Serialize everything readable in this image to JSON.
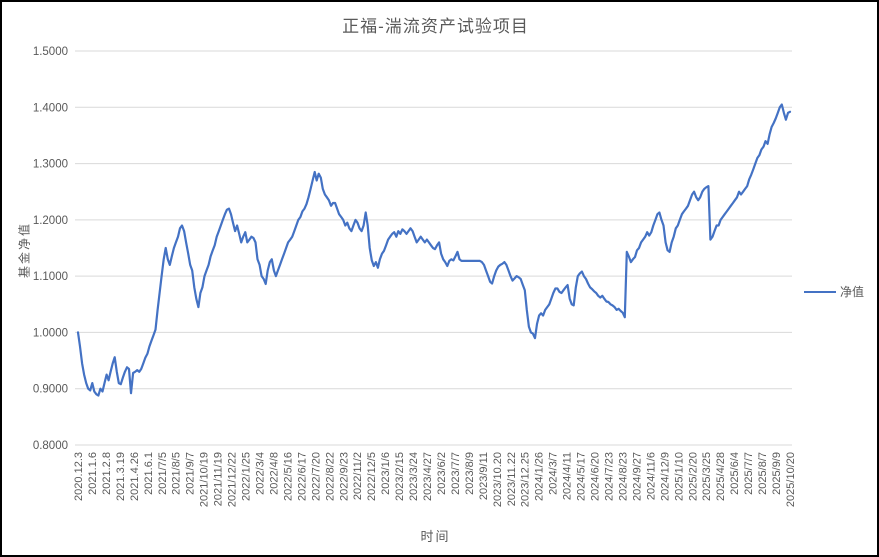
{
  "header": {
    "title": "正福-湍流资产试验项目"
  },
  "axes": {
    "y_title": "基金净值",
    "x_title": "时间"
  },
  "legend": {
    "label": "净值"
  },
  "colors": {
    "line": "#4472C4",
    "grid": "#D9D9D9",
    "axis": "#D9D9D9",
    "text": "#595959",
    "frame": "#000000"
  },
  "chart_data": {
    "type": "line",
    "title": "正福-湍流资产试验项目",
    "xlabel": "时间",
    "ylabel": "基金净值",
    "legend_position": "right",
    "grid": true,
    "ylim": [
      0.8,
      1.5
    ],
    "y_ticks": [
      {
        "value": 1.5,
        "label": "1.5000"
      },
      {
        "value": 1.4,
        "label": "1.4000"
      },
      {
        "value": 1.3,
        "label": "1.3000"
      },
      {
        "value": 1.2,
        "label": "1.2000"
      },
      {
        "value": 1.1,
        "label": "1.1000"
      },
      {
        "value": 1.0,
        "label": "1.0000"
      },
      {
        "value": 0.9,
        "label": "0.9000"
      },
      {
        "value": 0.8,
        "label": "0.8000"
      }
    ],
    "categories": [
      "2020.12.3",
      "2021.1.6",
      "2021.2.8",
      "2021.3.19",
      "2021.4.26",
      "2021.6.1",
      "2021/7/5",
      "2021/8/5",
      "2021/9/7",
      "2021/10/19",
      "2021/11/19",
      "2021/12/22",
      "2022/1/25",
      "2022/3/4",
      "2022/4/8",
      "2022/5/16",
      "2022/6/17",
      "2022/7/20",
      "2022/8/22",
      "2022/9/23",
      "2022/11/2",
      "2022/12/5",
      "2023/1/6",
      "2023/2/15",
      "2023/3/24",
      "2023/4/27",
      "2023/6/2",
      "2023/7/7",
      "2023/8/9",
      "2023/9/11",
      "2023/10.20",
      "2023/11.22",
      "2023/12.25",
      "2024/1/26",
      "2024/3/7",
      "2024/4/11",
      "2024/5/17",
      "2024/6/20",
      "2024/7/23",
      "2024/8/23",
      "2024/9/27",
      "2024/11/6",
      "2024/12/9",
      "2025/1/10",
      "2025/2/20",
      "2025/3/25",
      "2025/4/28",
      "2025/6/4",
      "2025/7/7",
      "2025/8/7",
      "2025/9/9",
      "2025/10/20"
    ],
    "series": [
      {
        "name": "净值",
        "color": "#4472C4",
        "values": [
          1.0,
          0.975,
          0.945,
          0.925,
          0.91,
          0.9,
          0.897,
          0.91,
          0.895,
          0.89,
          0.888,
          0.9,
          0.895,
          0.91,
          0.925,
          0.915,
          0.93,
          0.945,
          0.956,
          0.93,
          0.91,
          0.908,
          0.92,
          0.93,
          0.938,
          0.935,
          0.892,
          0.928,
          0.93,
          0.933,
          0.93,
          0.935,
          0.945,
          0.955,
          0.962,
          0.975,
          0.985,
          0.995,
          1.005,
          1.04,
          1.07,
          1.1,
          1.13,
          1.15,
          1.13,
          1.12,
          1.135,
          1.15,
          1.16,
          1.17,
          1.185,
          1.19,
          1.18,
          1.16,
          1.14,
          1.12,
          1.11,
          1.08,
          1.06,
          1.045,
          1.07,
          1.08,
          1.1,
          1.11,
          1.12,
          1.135,
          1.145,
          1.155,
          1.17,
          1.18,
          1.19,
          1.2,
          1.21,
          1.218,
          1.22,
          1.21,
          1.195,
          1.18,
          1.19,
          1.175,
          1.16,
          1.17,
          1.178,
          1.16,
          1.165,
          1.17,
          1.168,
          1.16,
          1.13,
          1.12,
          1.1,
          1.095,
          1.086,
          1.11,
          1.125,
          1.13,
          1.11,
          1.1,
          1.11,
          1.12,
          1.13,
          1.14,
          1.15,
          1.16,
          1.165,
          1.17,
          1.18,
          1.19,
          1.2,
          1.205,
          1.215,
          1.22,
          1.228,
          1.24,
          1.255,
          1.27,
          1.285,
          1.27,
          1.282,
          1.275,
          1.255,
          1.245,
          1.24,
          1.235,
          1.225,
          1.23,
          1.23,
          1.22,
          1.21,
          1.205,
          1.2,
          1.19,
          1.195,
          1.185,
          1.18,
          1.19,
          1.2,
          1.195,
          1.185,
          1.18,
          1.19,
          1.213,
          1.19,
          1.15,
          1.128,
          1.118,
          1.125,
          1.115,
          1.13,
          1.14,
          1.145,
          1.155,
          1.165,
          1.17,
          1.175,
          1.178,
          1.17,
          1.18,
          1.175,
          1.183,
          1.18,
          1.175,
          1.18,
          1.185,
          1.18,
          1.17,
          1.16,
          1.165,
          1.17,
          1.165,
          1.16,
          1.165,
          1.16,
          1.155,
          1.15,
          1.148,
          1.155,
          1.16,
          1.14,
          1.13,
          1.125,
          1.118,
          1.127,
          1.13,
          1.128,
          1.135,
          1.143,
          1.13,
          1.127,
          1.127,
          1.127,
          1.127,
          1.127,
          1.127,
          1.127,
          1.127,
          1.127,
          1.127,
          1.125,
          1.12,
          1.11,
          1.1,
          1.09,
          1.087,
          1.1,
          1.11,
          1.117,
          1.12,
          1.122,
          1.125,
          1.12,
          1.11,
          1.1,
          1.092,
          1.096,
          1.1,
          1.098,
          1.095,
          1.085,
          1.075,
          1.04,
          1.01,
          1.0,
          0.998,
          0.99,
          1.015,
          1.03,
          1.034,
          1.03,
          1.04,
          1.045,
          1.05,
          1.06,
          1.07,
          1.078,
          1.078,
          1.072,
          1.07,
          1.075,
          1.08,
          1.084,
          1.06,
          1.05,
          1.048,
          1.08,
          1.1,
          1.105,
          1.108,
          1.1,
          1.095,
          1.087,
          1.08,
          1.077,
          1.073,
          1.07,
          1.065,
          1.062,
          1.065,
          1.06,
          1.055,
          1.054,
          1.05,
          1.048,
          1.045,
          1.04,
          1.042,
          1.038,
          1.035,
          1.027,
          1.143,
          1.135,
          1.125,
          1.13,
          1.134,
          1.146,
          1.15,
          1.16,
          1.165,
          1.17,
          1.178,
          1.172,
          1.178,
          1.19,
          1.2,
          1.21,
          1.213,
          1.2,
          1.19,
          1.16,
          1.146,
          1.143,
          1.16,
          1.17,
          1.185,
          1.19,
          1.2,
          1.21,
          1.215,
          1.22,
          1.225,
          1.235,
          1.245,
          1.25,
          1.24,
          1.235,
          1.24,
          1.25,
          1.255,
          1.258,
          1.26,
          1.165,
          1.17,
          1.18,
          1.19,
          1.19,
          1.2,
          1.205,
          1.21,
          1.215,
          1.22,
          1.225,
          1.23,
          1.235,
          1.24,
          1.25,
          1.245,
          1.25,
          1.255,
          1.26,
          1.272,
          1.28,
          1.29,
          1.3,
          1.31,
          1.315,
          1.325,
          1.33,
          1.34,
          1.335,
          1.352,
          1.365,
          1.372,
          1.38,
          1.39,
          1.4,
          1.405,
          1.39,
          1.378,
          1.39,
          1.392
        ]
      }
    ]
  }
}
